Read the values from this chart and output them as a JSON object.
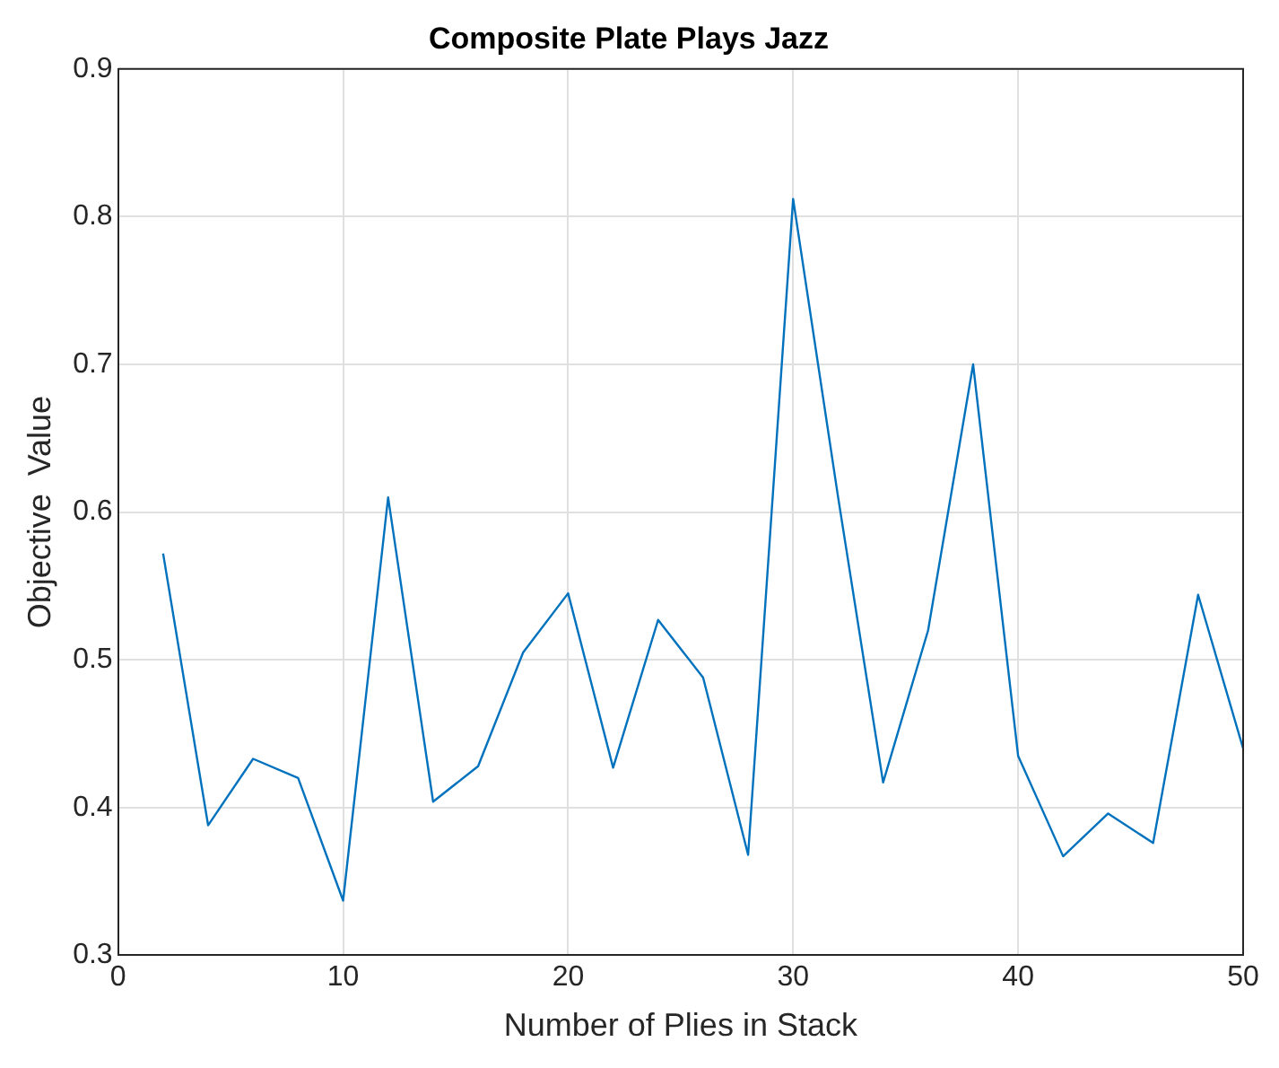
{
  "chart_data": {
    "type": "line",
    "title": "Composite Plate Plays Jazz",
    "xlabel": "Number of Plies in Stack",
    "ylabel": "Objective  Value",
    "x": [
      2,
      4,
      6,
      8,
      10,
      12,
      14,
      16,
      18,
      20,
      22,
      24,
      26,
      28,
      30,
      32,
      34,
      36,
      38,
      40,
      42,
      44,
      46,
      48,
      50
    ],
    "series": [
      {
        "color": "#0072bd",
        "values": [
          0.572,
          0.388,
          0.433,
          0.42,
          0.337,
          0.61,
          0.404,
          0.428,
          0.505,
          0.545,
          0.427,
          0.527,
          0.488,
          0.368,
          0.812,
          0.61,
          0.417,
          0.52,
          0.7,
          0.435,
          0.367,
          0.396,
          0.376,
          0.544,
          0.44
        ]
      }
    ],
    "xlim": [
      0,
      50
    ],
    "xticks": [
      0,
      10,
      20,
      30,
      40,
      50
    ],
    "ylim": [
      0.3,
      0.9
    ],
    "yticks": [
      0.3,
      0.4,
      0.5,
      0.6,
      0.7,
      0.8,
      0.9
    ],
    "grid": true,
    "legend": false,
    "marker": "none",
    "line_style": "solid"
  }
}
